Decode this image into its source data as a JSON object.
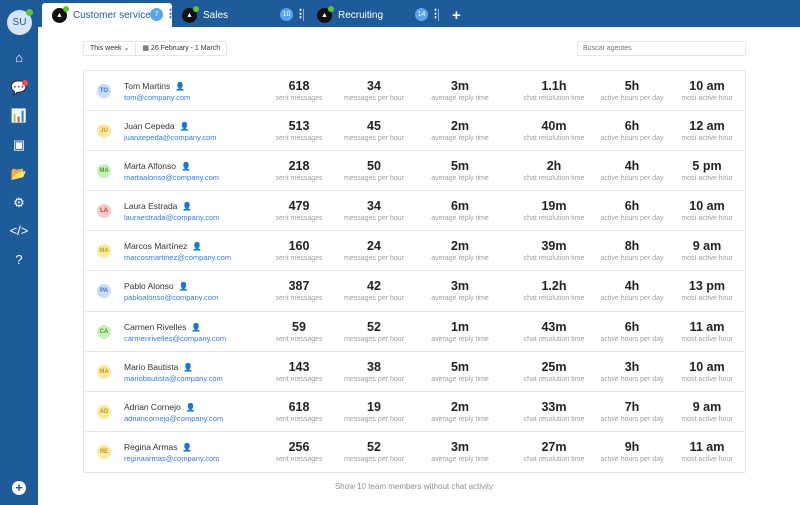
{
  "user": {
    "initials": "SU"
  },
  "sidebar": {
    "items": [
      {
        "icon": "home-icon",
        "glyph": "⌂"
      },
      {
        "icon": "chat-icon",
        "glyph": "💬"
      },
      {
        "icon": "stats-icon",
        "glyph": "📊"
      },
      {
        "icon": "contacts-icon",
        "glyph": "▣"
      },
      {
        "icon": "folder-icon",
        "glyph": "📂"
      },
      {
        "icon": "gear-icon",
        "glyph": "⚙"
      },
      {
        "icon": "code-icon",
        "glyph": "</>"
      },
      {
        "icon": "help-icon",
        "glyph": "?"
      }
    ],
    "add": "+"
  },
  "tabs": [
    {
      "label": "Customer service",
      "count": "7"
    },
    {
      "label": "Sales",
      "count": "10"
    },
    {
      "label": "Recruiting",
      "count": "14"
    }
  ],
  "add_tab": "+",
  "filters": {
    "period": "This week",
    "date_range": "26 February - 1 March"
  },
  "search": {
    "placeholder": "Buscar agentes"
  },
  "labels": {
    "sent": "sent messages",
    "mph": "messages per hour",
    "reply": "average reply time",
    "resolution": "chat resolution time",
    "active": "active hours per day",
    "hour": "most active hour"
  },
  "agents": [
    {
      "initials": "TO",
      "color": "#c9dcf5",
      "fg": "#3a73c5",
      "name": "Tom Martins",
      "email": "tom@company.com",
      "sent": "618",
      "mph": "34",
      "reply": "3m",
      "resolution": "1.1h",
      "active": "5h",
      "hour": "10 am"
    },
    {
      "initials": "JU",
      "color": "#fbe9a6",
      "fg": "#c99a12",
      "name": "Juan Cepeda",
      "email": "juanzepeda@company.com",
      "sent": "513",
      "mph": "45",
      "reply": "2m",
      "resolution": "40m",
      "active": "6h",
      "hour": "12 am"
    },
    {
      "initials": "MA",
      "color": "#cdeebe",
      "fg": "#4a9a2e",
      "name": "Marta Alfonso",
      "email": "martaalonso@company.com",
      "sent": "218",
      "mph": "50",
      "reply": "5m",
      "resolution": "2h",
      "active": "4h",
      "hour": "5 pm"
    },
    {
      "initials": "LA",
      "color": "#f6c8c8",
      "fg": "#c23b3b",
      "name": "Laura Estrada",
      "email": "lauraestrada@company.com",
      "sent": "479",
      "mph": "34",
      "reply": "6m",
      "resolution": "19m",
      "active": "6h",
      "hour": "10 am"
    },
    {
      "initials": "MA",
      "color": "#fbe9a6",
      "fg": "#c99a12",
      "name": "Marcos Martínez",
      "email": "marcosmartinez@company.com",
      "sent": "160",
      "mph": "24",
      "reply": "2m",
      "resolution": "39m",
      "active": "8h",
      "hour": "9 am"
    },
    {
      "initials": "PA",
      "color": "#c9dcf5",
      "fg": "#3a73c5",
      "name": "Pablo Alonso",
      "email": "pabloalonso@company.com",
      "sent": "387",
      "mph": "42",
      "reply": "3m",
      "resolution": "1.2h",
      "active": "4h",
      "hour": "13 pm"
    },
    {
      "initials": "CA",
      "color": "#cdeebe",
      "fg": "#4a9a2e",
      "name": "Carmen Rivelles",
      "email": "carmenrivelles@company.com",
      "sent": "59",
      "mph": "52",
      "reply": "1m",
      "resolution": "43m",
      "active": "6h",
      "hour": "11 am"
    },
    {
      "initials": "MA",
      "color": "#fbe9a6",
      "fg": "#c99a12",
      "name": "Mario Bautista",
      "email": "mariobautista@company.com",
      "sent": "143",
      "mph": "38",
      "reply": "5m",
      "resolution": "25m",
      "active": "3h",
      "hour": "10 am"
    },
    {
      "initials": "AD",
      "color": "#fbe9a6",
      "fg": "#c99a12",
      "name": "Adrian Cornejo",
      "email": "adriancornejo@company.com",
      "sent": "618",
      "mph": "19",
      "reply": "2m",
      "resolution": "33m",
      "active": "7h",
      "hour": "9 am"
    },
    {
      "initials": "RE",
      "color": "#fbe9a6",
      "fg": "#c99a12",
      "name": "Regina Armas",
      "email": "reginaarmas@company.com",
      "sent": "256",
      "mph": "52",
      "reply": "3m",
      "resolution": "27m",
      "active": "9h",
      "hour": "11 am"
    }
  ],
  "footer": "Show 10 team members without chat activity"
}
